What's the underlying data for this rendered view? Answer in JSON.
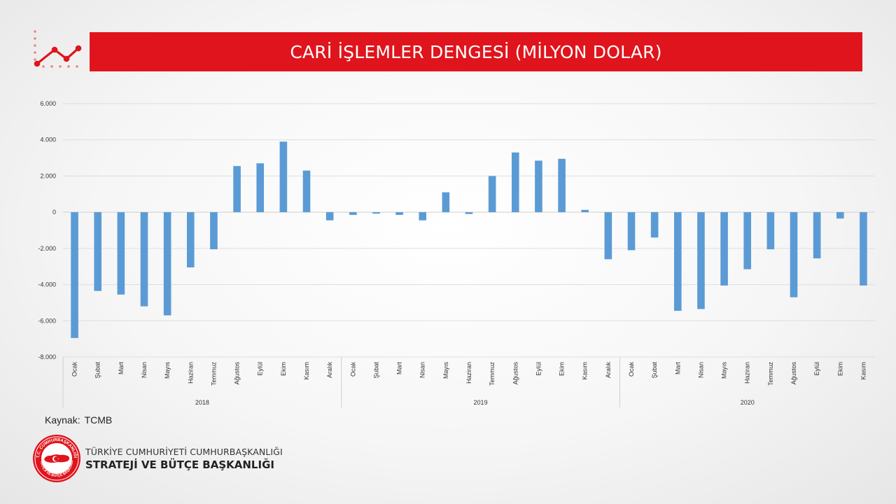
{
  "header": {
    "title": "CARİ İŞLEMLER DENGESİ (MİLYON DOLAR)"
  },
  "chart_data": {
    "type": "bar",
    "title": "CARİ İŞLEMLER DENGESİ (MİLYON DOLAR)",
    "ylim": [
      -8000,
      6000
    ],
    "yticks": [
      6000,
      4000,
      2000,
      0,
      -2000,
      -4000,
      -6000,
      -8000
    ],
    "ytick_labels": [
      "6.000",
      "4.000",
      "2.000",
      "0",
      "-2.000",
      "-4.000",
      "-6.000",
      "-8.000"
    ],
    "grid": true,
    "bar_color": "#5b9bd5",
    "groups": [
      {
        "name": "2018",
        "categories": [
          "Ocak",
          "Şubat",
          "Mart",
          "Nisan",
          "Mayıs",
          "Haziran",
          "Temmuz",
          "Ağustos",
          "Eylül",
          "Ekim",
          "Kasım",
          "Aralık"
        ],
        "values": [
          -6950,
          -4350,
          -4550,
          -5200,
          -5700,
          -3050,
          -2050,
          2550,
          2700,
          3900,
          2300,
          -450
        ]
      },
      {
        "name": "2019",
        "categories": [
          "Ocak",
          "Şubat",
          "Mart",
          "Nisan",
          "Mayıs",
          "Haziran",
          "Temmuz",
          "Ağustos",
          "Eylül",
          "Ekim",
          "Kasım",
          "Aralık"
        ],
        "values": [
          -150,
          -80,
          -150,
          -450,
          1100,
          -100,
          2000,
          3300,
          2850,
          2950,
          130,
          -2600
        ]
      },
      {
        "name": "2020",
        "categories": [
          "Ocak",
          "Şubat",
          "Mart",
          "Nisan",
          "Mayıs",
          "Haziran",
          "Temmuz",
          "Ağustos",
          "Eylül",
          "Ekim",
          "Kasım"
        ],
        "values": [
          -2100,
          -1400,
          -5450,
          -5350,
          -4050,
          -3150,
          -2050,
          -4700,
          -2550,
          -350,
          -4050
        ]
      }
    ]
  },
  "footer": {
    "source_label": "Kaynak:",
    "source_value": "TCMB",
    "org_line1": "TÜRKİYE CUMHURİYETİ CUMHURBAŞKANLIĞI",
    "org_line2": "STRATEJİ VE BÜTÇE BAŞKANLIĞI",
    "emblem_text": "T.C. CUMHURBAŞKANLIĞI STRATEJİ VE BÜTÇE BAŞKANLIĞI"
  },
  "colors": {
    "brand_red": "#e0141c",
    "bar_blue": "#5b9bd5"
  }
}
